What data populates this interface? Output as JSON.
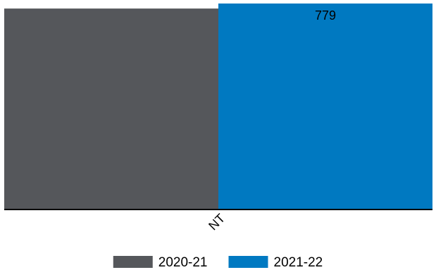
{
  "chart_data": {
    "type": "bar",
    "title": "",
    "xlabel": "",
    "ylabel": "",
    "categories": [
      "NT"
    ],
    "ylim": [
      0,
      779
    ],
    "grid": false,
    "legend_position": "bottom",
    "series": [
      {
        "name": "2020-21",
        "values": [
          760
        ],
        "color": "#55575b",
        "data_labels": [
          ""
        ]
      },
      {
        "name": "2021-22",
        "values": [
          779
        ],
        "color": "#0079c1",
        "data_labels": [
          "779"
        ]
      }
    ]
  }
}
